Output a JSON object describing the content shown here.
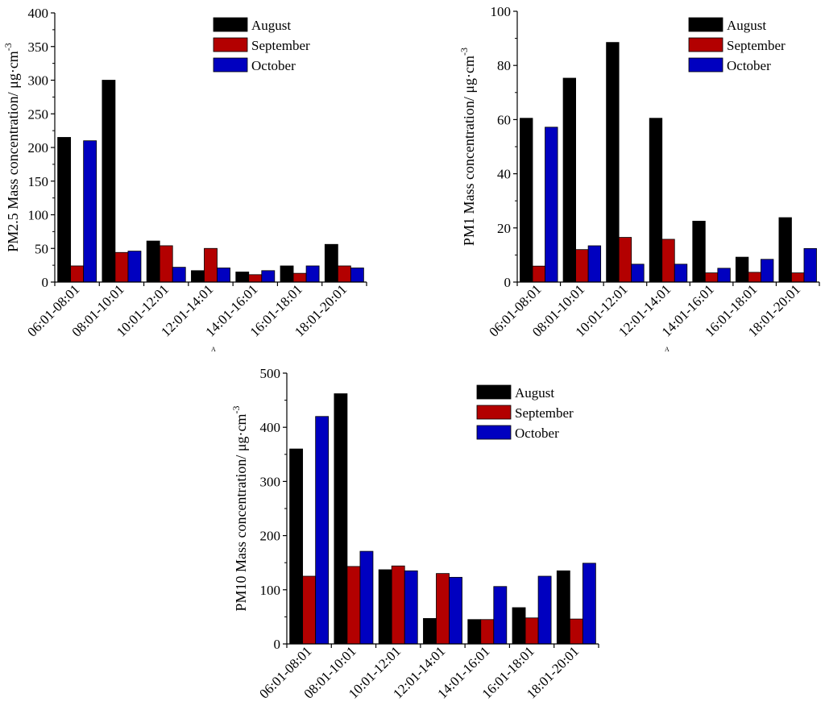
{
  "colors": {
    "August": "#000000",
    "September": "#b30000",
    "October": "#0000c0",
    "axis": "#000000"
  },
  "chart_data": [
    {
      "id": "pm25",
      "type": "bar",
      "title": "",
      "panel_label": "A",
      "ylabel": "PM2.5 Mass concentration/ μg·cm",
      "ylabel_sup": "-3",
      "xlabel": "",
      "ylim": [
        0,
        400
      ],
      "yticks": [
        0,
        50,
        100,
        150,
        200,
        250,
        300,
        350,
        400
      ],
      "categories": [
        "06:01-08:01",
        "08:01-10:01",
        "10:01-12:01",
        "12:01-14:01",
        "14:01-16:01",
        "16:01-18:01",
        "18:01-20:01"
      ],
      "series": [
        {
          "name": "August",
          "values": [
            215,
            300,
            61,
            17,
            15,
            24,
            56
          ]
        },
        {
          "name": "September",
          "values": [
            24,
            44,
            54,
            50,
            11,
            13,
            24
          ]
        },
        {
          "name": "October",
          "values": [
            210,
            46,
            22,
            21,
            17,
            24,
            21
          ]
        }
      ],
      "legend": "top-right"
    },
    {
      "id": "pm1",
      "type": "bar",
      "title": "",
      "panel_label": "A",
      "ylabel": "PM1 Mass concentration/ μg·cm",
      "ylabel_sup": "-3",
      "xlabel": "",
      "ylim": [
        0,
        100
      ],
      "yticks": [
        0,
        20,
        40,
        60,
        80,
        100
      ],
      "categories": [
        "06:01-08:01",
        "08:01-10:01",
        "10:01-12:01",
        "12:01-14:01",
        "14:01-16:01",
        "16:01-18:01",
        "18:01-20:01"
      ],
      "series": [
        {
          "name": "August",
          "values": [
            60.5,
            75.3,
            88.5,
            60.5,
            22.5,
            9.2,
            23.8
          ]
        },
        {
          "name": "September",
          "values": [
            5.9,
            12.0,
            16.5,
            15.8,
            3.4,
            3.6,
            3.4
          ]
        },
        {
          "name": "October",
          "values": [
            57.2,
            13.4,
            6.6,
            6.6,
            5.1,
            8.4,
            12.4
          ]
        }
      ],
      "legend": "top-right"
    },
    {
      "id": "pm10",
      "type": "bar",
      "title": "",
      "panel_label": "",
      "ylabel": "PM10 Mass concentration/ μg·cm",
      "ylabel_sup": "-3",
      "xlabel": "",
      "ylim": [
        0,
        500
      ],
      "yticks": [
        0,
        100,
        200,
        300,
        400,
        500
      ],
      "categories": [
        "06:01-08:01",
        "08:01-10:01",
        "10:01-12:01",
        "12:01-14:01",
        "14:01-16:01",
        "16:01-18:01",
        "18:01-20:01"
      ],
      "series": [
        {
          "name": "August",
          "values": [
            360,
            462,
            137,
            47,
            45,
            67,
            135
          ]
        },
        {
          "name": "September",
          "values": [
            125,
            143,
            144,
            130,
            45,
            48,
            46
          ]
        },
        {
          "name": "October",
          "values": [
            420,
            171,
            135,
            123,
            106,
            125,
            149
          ]
        }
      ],
      "legend": "top-right"
    }
  ]
}
